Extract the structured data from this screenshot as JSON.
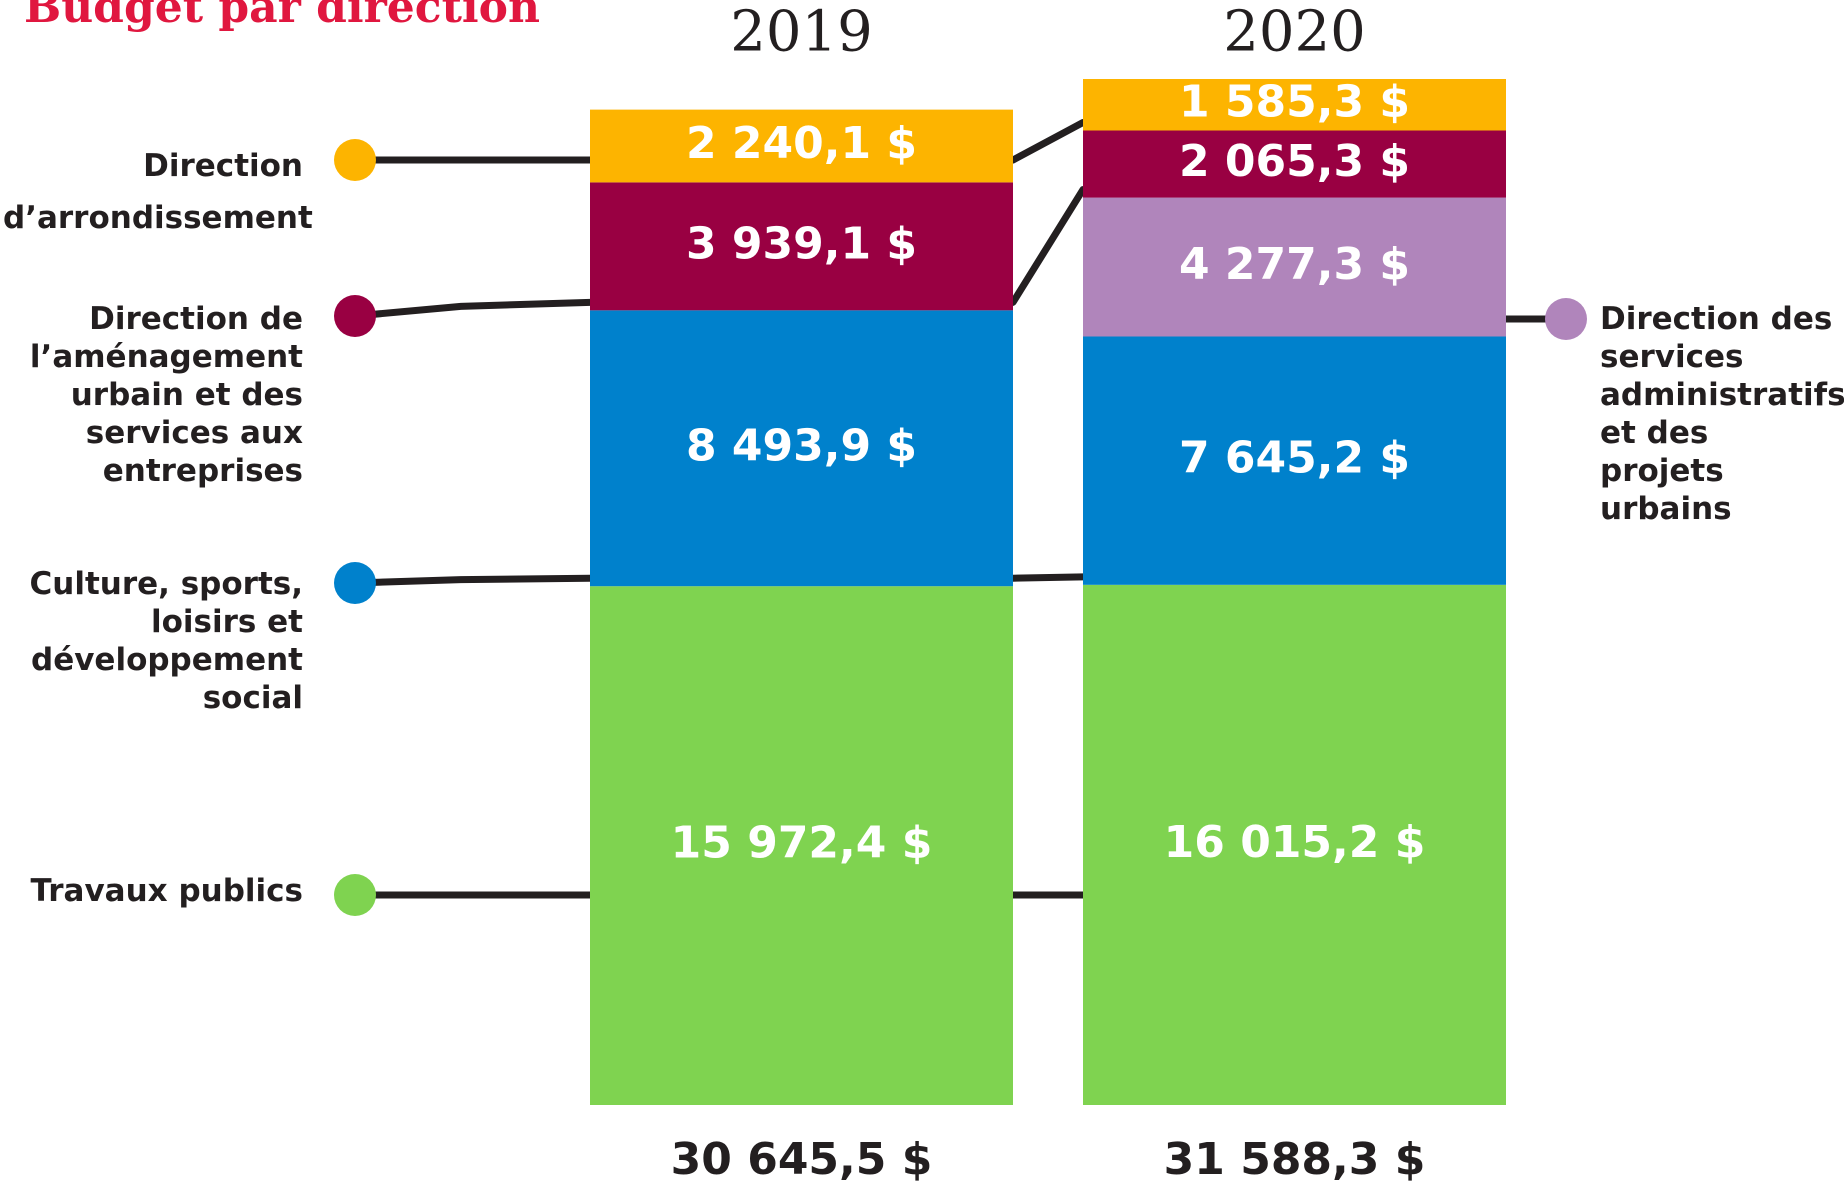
{
  "chart_data": {
    "type": "stacked_bar",
    "title": "Budget par direction",
    "categories": [
      "2019",
      "2020"
    ],
    "series": [
      {
        "name": "Travaux publics",
        "color": "#7fd350",
        "values": [
          15972.4,
          16015.2
        ],
        "value_labels": [
          "15 972,4 $",
          "16 015,2 $"
        ]
      },
      {
        "name": "Culture, sports, loisirs et développement social",
        "color": "#0081cc",
        "values": [
          8493.9,
          7645.2
        ],
        "value_labels": [
          "8 493,9 $",
          "7 645,2 $"
        ]
      },
      {
        "name": "Direction des services administratifs et des projets urbains",
        "color": "#b085bb",
        "values": [
          null,
          4277.3
        ],
        "value_labels": [
          null,
          "4 277,3 $"
        ]
      },
      {
        "name": "Direction de l’aménagement urbain et des services aux entreprises",
        "color": "#990042",
        "values": [
          3939.1,
          2065.3
        ],
        "value_labels": [
          "3 939,1 $",
          "2 065,3 $"
        ]
      },
      {
        "name": "Direction d’arrondissement",
        "color": "#fdb400",
        "values": [
          2240.1,
          1585.3
        ],
        "value_labels": [
          "2 240,1 $",
          "1 585,3 $"
        ]
      }
    ],
    "totals": {
      "values": [
        30645.5,
        31588.3
      ],
      "value_labels": [
        "30 645,5 $",
        "31 588,3 $"
      ]
    }
  }
}
